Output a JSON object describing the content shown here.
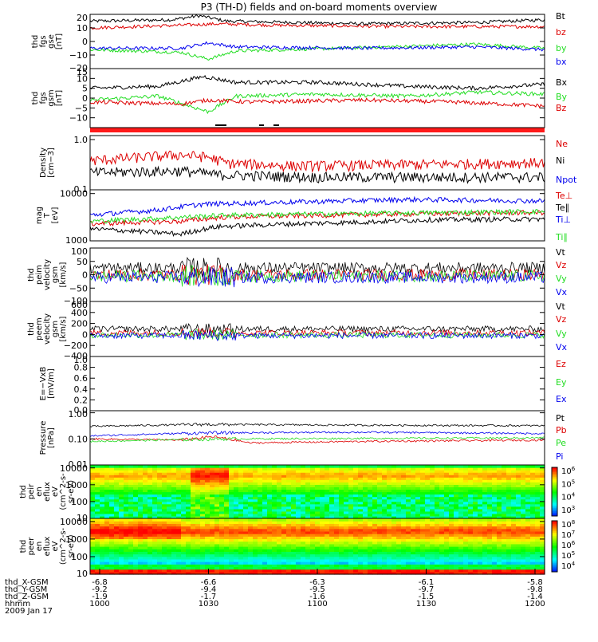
{
  "title": "P3 (TH-D) fields and on-board moments overview",
  "colors": {
    "black": "#000000",
    "red": "#dd0000",
    "green": "#22dd22",
    "blue": "#0000ee",
    "bar_red": "#ff1a1a"
  },
  "time_axis": {
    "tick_labels": [
      "1000",
      "1030",
      "1100",
      "1130",
      "1200"
    ],
    "rows": [
      {
        "label": "thd_X-GSM",
        "values": [
          "-6.8",
          "-6.6",
          "-6.3",
          "-6.1",
          "-5.8"
        ]
      },
      {
        "label": "thd_Y-GSM",
        "values": [
          "-9.2",
          "-9.4",
          "-9.5",
          "-9.7",
          "-9.8"
        ]
      },
      {
        "label": "thd_Z-GSM",
        "values": [
          "-1.9",
          "-1.7",
          "-1.6",
          "-1.5",
          "-1.4"
        ]
      },
      {
        "label": "hhmm",
        "values": [
          "1000",
          "1030",
          "1100",
          "1130",
          "1200"
        ]
      }
    ],
    "date": "2009 Jan 17"
  },
  "chart_data": [
    {
      "type": "line",
      "panel": "fgs_gse",
      "ylabel_lines": [
        "thd",
        "fgs",
        "gse",
        "[nT]"
      ],
      "ylim": [
        -20,
        20
      ],
      "ytick_labels": [
        "20",
        "10",
        "0",
        "−10",
        "−20"
      ],
      "ytick_values": [
        20,
        10,
        0,
        -10,
        -20
      ],
      "series": [
        {
          "name": "Bt",
          "color": "black",
          "levels": [
            [
              0,
              15
            ],
            [
              0.18,
              16
            ],
            [
              0.24,
              19
            ],
            [
              0.3,
              15
            ],
            [
              0.6,
              13
            ],
            [
              0.85,
              14
            ],
            [
              1,
              16
            ]
          ]
        },
        {
          "name": "bz",
          "color": "red",
          "levels": [
            [
              0,
              10
            ],
            [
              0.2,
              12
            ],
            [
              0.28,
              13
            ],
            [
              0.4,
              12
            ],
            [
              0.7,
              11
            ],
            [
              1,
              11
            ]
          ]
        },
        {
          "name": "by",
          "color": "green",
          "levels": [
            [
              0,
              -6
            ],
            [
              0.2,
              -8
            ],
            [
              0.26,
              -13
            ],
            [
              0.32,
              -7
            ],
            [
              0.55,
              -5
            ],
            [
              0.75,
              -3
            ],
            [
              0.85,
              -2
            ],
            [
              1,
              -5
            ]
          ]
        },
        {
          "name": "bx",
          "color": "blue",
          "levels": [
            [
              0,
              -5
            ],
            [
              0.2,
              -5
            ],
            [
              0.26,
              -1
            ],
            [
              0.32,
              -4
            ],
            [
              0.6,
              -5
            ],
            [
              0.85,
              -4
            ],
            [
              1,
              -6
            ]
          ]
        }
      ]
    },
    {
      "type": "line",
      "panel": "fgs_gsm",
      "ylabel_lines": [
        "thd",
        "fgs",
        "gsm",
        "[nT]"
      ],
      "ylim": [
        -15,
        15
      ],
      "ytick_labels": [
        "15",
        "10",
        "5",
        "0",
        "−5",
        "−10"
      ],
      "ytick_values": [
        15,
        10,
        5,
        0,
        -5,
        -10
      ],
      "series": [
        {
          "name": "Bx",
          "color": "black",
          "levels": [
            [
              0,
              5
            ],
            [
              0.15,
              6
            ],
            [
              0.25,
              11
            ],
            [
              0.32,
              8
            ],
            [
              0.5,
              8
            ],
            [
              0.7,
              6
            ],
            [
              0.85,
              5
            ],
            [
              1,
              7
            ]
          ]
        },
        {
          "name": "By",
          "color": "green",
          "levels": [
            [
              0,
              -1
            ],
            [
              0.15,
              1
            ],
            [
              0.26,
              -7
            ],
            [
              0.32,
              1
            ],
            [
              0.5,
              2
            ],
            [
              0.7,
              1
            ],
            [
              0.85,
              3
            ],
            [
              1,
              2
            ]
          ]
        },
        {
          "name": "Bz",
          "color": "red",
          "levels": [
            [
              0,
              -2
            ],
            [
              0.2,
              -3
            ],
            [
              0.26,
              -1
            ],
            [
              0.35,
              -2
            ],
            [
              0.6,
              -1
            ],
            [
              0.8,
              -2
            ],
            [
              1,
              -4
            ]
          ]
        }
      ]
    },
    {
      "type": "line",
      "panel": "density",
      "yscale": "log",
      "ylabel_lines": [
        "Density",
        "[cm−3]"
      ],
      "ylim": [
        0.1,
        1.2
      ],
      "ytick_labels": [
        "1.0",
        "0.1"
      ],
      "ytick_values": [
        1.0,
        0.1
      ],
      "series": [
        {
          "name": "Ne",
          "color": "red",
          "levels": [
            [
              0,
              0.38
            ],
            [
              0.2,
              0.5
            ],
            [
              0.26,
              0.45
            ],
            [
              0.3,
              0.34
            ],
            [
              0.45,
              0.3
            ],
            [
              0.7,
              0.32
            ],
            [
              1,
              0.35
            ]
          ]
        },
        {
          "name": "Ni",
          "color": "black",
          "levels": [
            [
              0,
              0.22
            ],
            [
              0.2,
              0.24
            ],
            [
              0.28,
              0.2
            ],
            [
              0.5,
              0.18
            ],
            [
              1,
              0.18
            ]
          ]
        },
        {
          "name": "Npot",
          "color": "blue",
          "levels": []
        }
      ]
    },
    {
      "type": "line",
      "panel": "temperature",
      "yscale": "log",
      "ylabel_lines": [
        "mag",
        "T",
        "[eV]"
      ],
      "ylim": [
        1000,
        12000
      ],
      "ytick_labels": [
        "10000",
        "1000"
      ],
      "ytick_values": [
        10000,
        1000
      ],
      "series": [
        {
          "name": "Te⊥",
          "color": "red",
          "levels": [
            [
              0,
              2300
            ],
            [
              0.2,
              2600
            ],
            [
              0.3,
              3200
            ],
            [
              0.6,
              3600
            ],
            [
              1,
              4000
            ]
          ]
        },
        {
          "name": "Te∥",
          "color": "black",
          "levels": [
            [
              0,
              1800
            ],
            [
              0.2,
              1400
            ],
            [
              0.28,
              2000
            ],
            [
              0.45,
              2300
            ],
            [
              0.6,
              2500
            ],
            [
              0.75,
              2800
            ],
            [
              1,
              2900
            ]
          ]
        },
        {
          "name": "Ti⊥",
          "color": "blue",
          "levels": [
            [
              0,
              3500
            ],
            [
              0.15,
              4500
            ],
            [
              0.25,
              6000
            ],
            [
              0.5,
              6800
            ],
            [
              0.7,
              7500
            ],
            [
              1,
              7000
            ]
          ]
        },
        {
          "name": "Ti∥",
          "color": "green",
          "levels": [
            [
              0,
              2600
            ],
            [
              0.15,
              3000
            ],
            [
              0.3,
              3500
            ],
            [
              0.6,
              3800
            ],
            [
              1,
              4200
            ]
          ]
        }
      ]
    },
    {
      "type": "line",
      "panel": "peim_velocity",
      "ylabel_lines": [
        "thd",
        "peim",
        "velocity",
        "gsm",
        "[km/s]"
      ],
      "ylim": [
        -100,
        100
      ],
      "ytick_labels": [
        "100",
        "50",
        "0",
        "−50",
        "−100"
      ],
      "ytick_values": [
        100,
        50,
        0,
        -50,
        -100
      ],
      "series": [
        {
          "name": "Vt",
          "color": "black",
          "levels": [
            [
              0,
              25
            ],
            [
              1,
              25
            ]
          ]
        },
        {
          "name": "Vz",
          "color": "red",
          "levels": [
            [
              0,
              0
            ],
            [
              1,
              0
            ]
          ]
        },
        {
          "name": "Vy",
          "color": "green",
          "levels": [
            [
              0,
              -5
            ],
            [
              1,
              -5
            ]
          ]
        },
        {
          "name": "Vx",
          "color": "blue",
          "levels": [
            [
              0,
              -10
            ],
            [
              1,
              -10
            ]
          ]
        }
      ]
    },
    {
      "type": "line",
      "panel": "peem_velocity",
      "ylabel_lines": [
        "thd",
        "peem",
        "velocity",
        "gsm",
        "[km/s]"
      ],
      "ylim": [
        -400,
        600
      ],
      "ytick_labels": [
        "600",
        "400",
        "200",
        "0",
        "−200",
        "−400"
      ],
      "ytick_values": [
        600,
        400,
        200,
        0,
        -200,
        -400
      ],
      "series": [
        {
          "name": "Vt",
          "color": "black",
          "levels": [
            [
              0,
              100
            ],
            [
              1,
              100
            ]
          ]
        },
        {
          "name": "Vz",
          "color": "red",
          "levels": [
            [
              0,
              30
            ],
            [
              1,
              30
            ]
          ]
        },
        {
          "name": "Vy",
          "color": "green",
          "levels": [
            [
              0,
              -10
            ],
            [
              1,
              -10
            ]
          ]
        },
        {
          "name": "Vx",
          "color": "blue",
          "levels": [
            [
              0,
              -20
            ],
            [
              1,
              -20
            ]
          ]
        }
      ]
    },
    {
      "type": "line",
      "panel": "exb",
      "ylabel_lines": [
        "E=−VxB",
        "[mV/m]"
      ],
      "ylim": [
        0,
        1
      ],
      "ytick_labels": [
        "1.0",
        "0.8",
        "0.6",
        "0.4",
        "0.2",
        "0.0"
      ],
      "ytick_values": [
        1,
        0.8,
        0.6,
        0.4,
        0.2,
        0
      ],
      "series": [
        {
          "name": "Ez",
          "color": "red",
          "levels": []
        },
        {
          "name": "Ey",
          "color": "green",
          "levels": []
        },
        {
          "name": "Ex",
          "color": "blue",
          "levels": []
        }
      ]
    },
    {
      "type": "line",
      "panel": "pressure",
      "yscale": "log",
      "ylabel_lines": [
        "Pressure",
        "[nPa]"
      ],
      "ylim": [
        0.01,
        1.2
      ],
      "ytick_labels": [
        "1.00",
        "0.10",
        "0.01"
      ],
      "ytick_values": [
        1,
        0.1,
        0.01
      ],
      "series": [
        {
          "name": "Pt",
          "color": "black",
          "levels": [
            [
              0,
              0.3
            ],
            [
              0.25,
              0.36
            ],
            [
              0.5,
              0.34
            ],
            [
              1,
              0.32
            ]
          ]
        },
        {
          "name": "Pb",
          "color": "red",
          "levels": [
            [
              0,
              0.1
            ],
            [
              0.2,
              0.09
            ],
            [
              0.27,
              0.12
            ],
            [
              0.35,
              0.07
            ],
            [
              0.6,
              0.08
            ],
            [
              1,
              0.09
            ]
          ]
        },
        {
          "name": "Pe",
          "color": "green",
          "levels": [
            [
              0,
              0.08
            ],
            [
              0.3,
              0.1
            ],
            [
              1,
              0.11
            ]
          ]
        },
        {
          "name": "Pi",
          "color": "blue",
          "levels": [
            [
              0,
              0.13
            ],
            [
              0.25,
              0.17
            ],
            [
              0.6,
              0.18
            ],
            [
              1,
              0.16
            ]
          ]
        }
      ]
    },
    {
      "type": "heatmap",
      "panel": "peir_en_eflux",
      "ylabel_lines": [
        "thd",
        "peir",
        "en",
        "eflux",
        "eV",
        "(cm^2-s-",
        "sr-eV)"
      ],
      "yscale": "log",
      "ylim": [
        10,
        15000
      ],
      "ytick_labels": [
        "10000",
        "1000",
        "100",
        "10"
      ],
      "ytick_values": [
        10000,
        1000,
        100,
        10
      ],
      "colorbar_labels": [
        "10^6",
        "10^5",
        "10^4",
        "10^3"
      ]
    },
    {
      "type": "heatmap",
      "panel": "peer_en_eflux",
      "ylabel_lines": [
        "thd",
        "peer",
        "en",
        "eflux",
        "eV",
        "(cm^2-s-",
        "sr-eV)"
      ],
      "yscale": "log",
      "ylim": [
        10,
        15000
      ],
      "ytick_labels": [
        "10000",
        "1000",
        "100",
        "10"
      ],
      "ytick_values": [
        10000,
        1000,
        100,
        10
      ],
      "colorbar_labels": [
        "10^8",
        "10^7",
        "10^6",
        "10^5",
        "10^4"
      ]
    }
  ]
}
